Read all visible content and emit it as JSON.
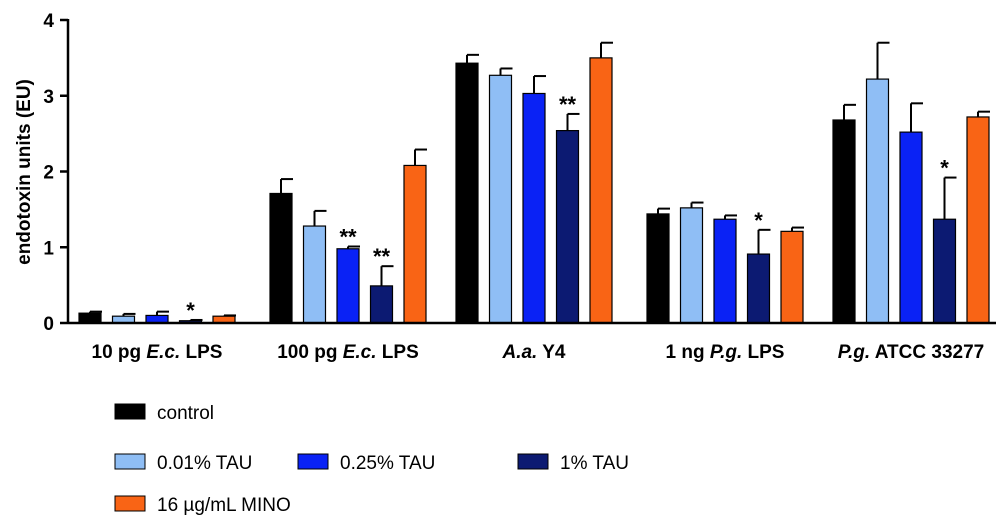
{
  "chart_data": {
    "type": "bar",
    "ylabel": "endotoxin units (EU)",
    "ylim": [
      0,
      4
    ],
    "yticks": [
      "0",
      "1",
      "2",
      "3",
      "4"
    ],
    "categories": [
      {
        "label": "10 pg E.c. LPS",
        "parts": [
          {
            "t": "10 pg ",
            "i": false
          },
          {
            "t": "E.c.",
            "i": true
          },
          {
            "t": " LPS",
            "i": false
          }
        ]
      },
      {
        "label": "100 pg E.c. LPS",
        "parts": [
          {
            "t": "100 pg ",
            "i": false
          },
          {
            "t": "E.c.",
            "i": true
          },
          {
            "t": " LPS",
            "i": false
          }
        ]
      },
      {
        "label": "A.a. Y4",
        "parts": [
          {
            "t": "A.a.",
            "i": true
          },
          {
            "t": " Y4",
            "i": false
          }
        ]
      },
      {
        "label": "1 ng P.g. LPS",
        "parts": [
          {
            "t": "1 ng ",
            "i": false
          },
          {
            "t": "P.g.",
            "i": true
          },
          {
            "t": " LPS",
            "i": false
          }
        ]
      },
      {
        "label": "P.g. ATCC 33277",
        "parts": [
          {
            "t": "P.g.",
            "i": true
          },
          {
            "t": " ATCC 33277",
            "i": false
          }
        ]
      }
    ],
    "series": [
      {
        "name": "control",
        "color": "#000000",
        "values": [
          0.13,
          1.71,
          3.43,
          1.44,
          2.68
        ],
        "errors": [
          0.02,
          0.19,
          0.11,
          0.07,
          0.2
        ],
        "stars": [
          "",
          "",
          "",
          "",
          ""
        ]
      },
      {
        "name": "0.01% TAU",
        "color": "#8fbef5",
        "values": [
          0.09,
          1.28,
          3.27,
          1.52,
          3.22
        ],
        "errors": [
          0.03,
          0.2,
          0.09,
          0.07,
          0.48
        ],
        "stars": [
          "",
          "",
          "",
          "",
          ""
        ]
      },
      {
        "name": "0.25% TAU",
        "color": "#0a22f5",
        "values": [
          0.1,
          0.98,
          3.03,
          1.37,
          2.52
        ],
        "errors": [
          0.05,
          0.03,
          0.23,
          0.05,
          0.38
        ],
        "stars": [
          "",
          "**",
          "",
          "",
          ""
        ]
      },
      {
        "name": "1% TAU",
        "color": "#0c1a72",
        "values": [
          0.03,
          0.49,
          2.54,
          0.91,
          1.37
        ],
        "errors": [
          0.01,
          0.26,
          0.22,
          0.32,
          0.55
        ],
        "stars": [
          "*",
          "**",
          "**",
          "*",
          "*"
        ]
      },
      {
        "name": "16 µg/mL MINO",
        "color": "#f96415",
        "values": [
          0.09,
          2.08,
          3.5,
          1.21,
          2.72
        ],
        "errors": [
          0.01,
          0.21,
          0.2,
          0.05,
          0.07
        ],
        "stars": [
          "",
          "",
          "",
          "",
          ""
        ]
      }
    ],
    "legend": [
      [
        "control"
      ],
      [
        "0.01% TAU",
        "0.25% TAU",
        "1% TAU"
      ],
      [
        "16 µg/mL MINO"
      ]
    ],
    "grid": false,
    "legend_position": "bottom-left"
  }
}
